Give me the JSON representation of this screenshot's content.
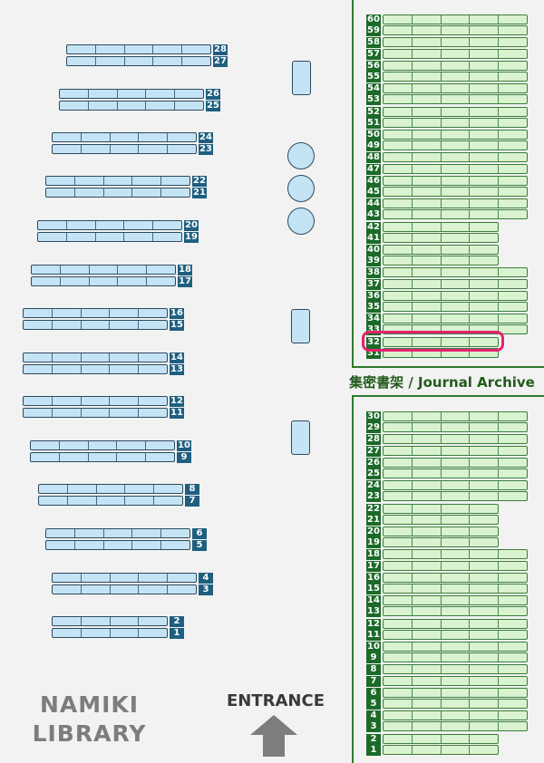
{
  "library_name": "NAMIKI LIBRARY",
  "entrance_label": "ENTRANCE",
  "archive_title": "集密書架 / Journal Archive",
  "highlighted_shelf": "32",
  "colors": {
    "general_shelf": "#c4e4f5",
    "archive_shelf": "#d9f2cf",
    "general_label": "#1e5f80",
    "archive_label": "#1c6a28",
    "highlight": "#e8206e"
  },
  "general_shelves": [
    {
      "number": "28",
      "sections": 5
    },
    {
      "number": "27",
      "sections": 5
    },
    {
      "number": "26",
      "sections": 5
    },
    {
      "number": "25",
      "sections": 5
    },
    {
      "number": "24",
      "sections": 5
    },
    {
      "number": "23",
      "sections": 5
    },
    {
      "number": "22",
      "sections": 5
    },
    {
      "number": "21",
      "sections": 5
    },
    {
      "number": "20",
      "sections": 5
    },
    {
      "number": "19",
      "sections": 5
    },
    {
      "number": "18",
      "sections": 5
    },
    {
      "number": "17",
      "sections": 5
    },
    {
      "number": "16",
      "sections": 5
    },
    {
      "number": "15",
      "sections": 5
    },
    {
      "number": "14",
      "sections": 5
    },
    {
      "number": "13",
      "sections": 5
    },
    {
      "number": "12",
      "sections": 5
    },
    {
      "number": "11",
      "sections": 5
    },
    {
      "number": "10",
      "sections": 5
    },
    {
      "number": "9",
      "sections": 5
    },
    {
      "number": "8",
      "sections": 5
    },
    {
      "number": "7",
      "sections": 5
    },
    {
      "number": "6",
      "sections": 5
    },
    {
      "number": "5",
      "sections": 5
    },
    {
      "number": "4",
      "sections": 5
    },
    {
      "number": "3",
      "sections": 5
    },
    {
      "number": "2",
      "sections": 4
    },
    {
      "number": "1",
      "sections": 4
    }
  ],
  "archive_shelves_upper": [
    "60",
    "59",
    "58",
    "57",
    "56",
    "55",
    "54",
    "53",
    "52",
    "51",
    "50",
    "49",
    "48",
    "47",
    "46",
    "45",
    "44",
    "43",
    "42",
    "41",
    "40",
    "39",
    "38",
    "37",
    "36",
    "35",
    "34",
    "33",
    "32",
    "31"
  ],
  "archive_shelves_lower": [
    "30",
    "29",
    "28",
    "27",
    "26",
    "25",
    "24",
    "23",
    "22",
    "21",
    "20",
    "19",
    "18",
    "17",
    "16",
    "15",
    "14",
    "13",
    "12",
    "11",
    "10",
    "9",
    "8",
    "7",
    "6",
    "5",
    "4",
    "3",
    "2",
    "1"
  ],
  "archive_short_upper": [
    "42",
    "41",
    "40",
    "39",
    "32",
    "31"
  ],
  "archive_short_lower": [
    "22",
    "21",
    "20",
    "19",
    "2",
    "1"
  ]
}
